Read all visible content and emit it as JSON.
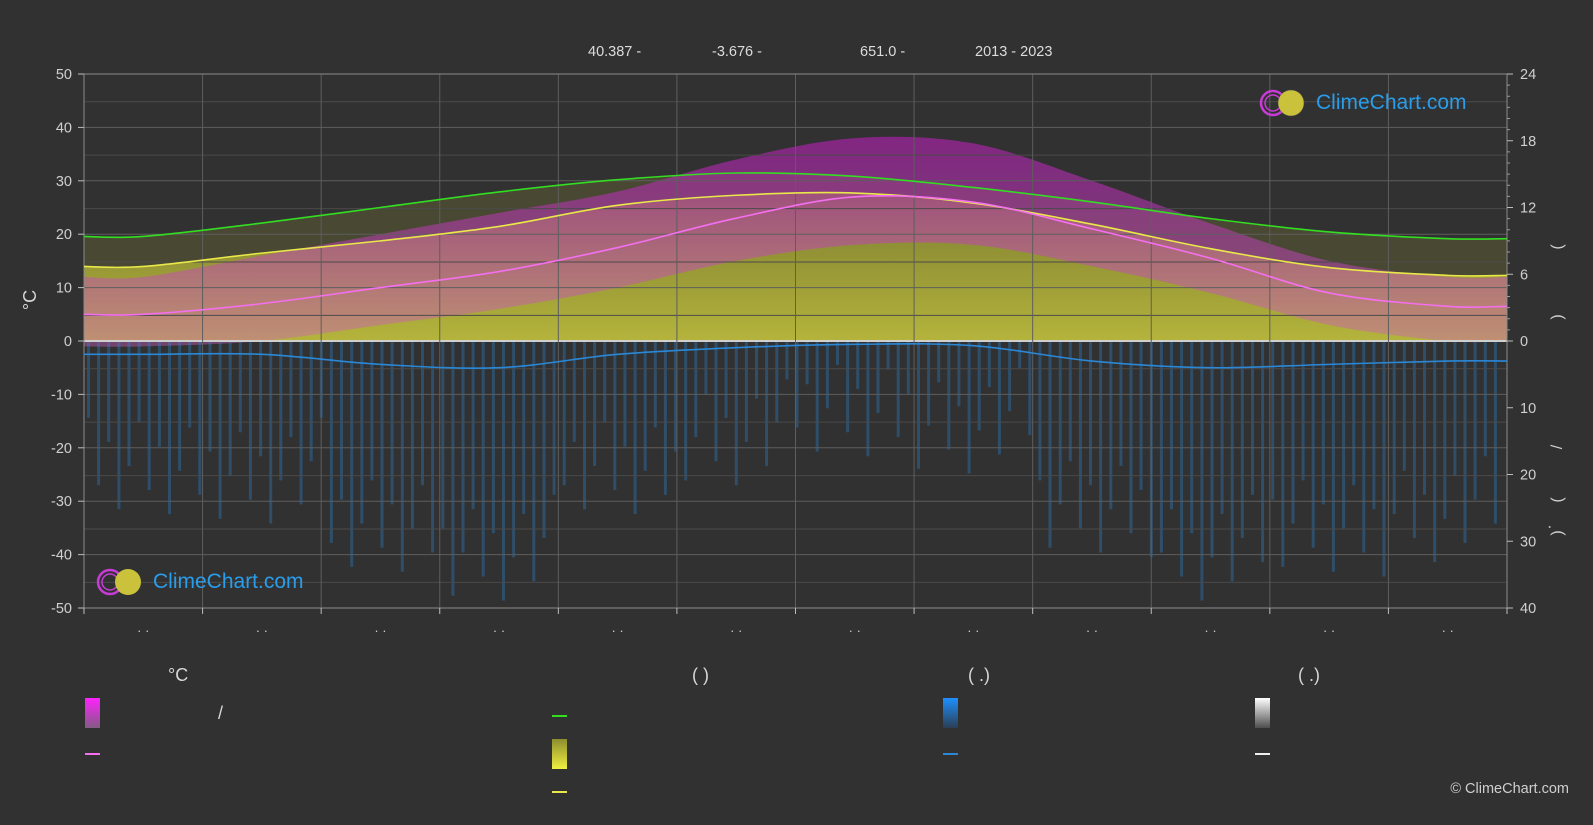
{
  "header": {
    "lat": "40.387 -",
    "lon": "-3.676 -",
    "elevation": "651.0 -",
    "period": "2013 - 2023"
  },
  "logo_text": "ClimeChart.com",
  "copyright": "© ClimeChart.com",
  "legend": {
    "temp_unit": "°C",
    "sun_head": "(        )",
    "rain_head": "(   .)",
    "snow_head": "(   .)",
    "slash": "/"
  },
  "colors": {
    "background": "#313131",
    "grid": "#5e5e5e",
    "daylight": "#33dd22",
    "sunshine": "#e8e84a",
    "avg_temp": "#f46ff0",
    "temp_range": "#c92ec6",
    "rain": "#2a88d6",
    "snow": "#dddddd",
    "brand": "#2a9dea"
  },
  "chart_data": {
    "type": "line",
    "x_tick_labels": [
      "· ·",
      "· ·",
      "· ·",
      "· ·",
      "· ·",
      "· ·",
      "· ·",
      "· ·",
      "· ·",
      "· ·",
      "· ·",
      "· ·"
    ],
    "y_left": {
      "label": "°C",
      "ticks": [
        50,
        40,
        30,
        20,
        10,
        0,
        -10,
        -20,
        -30,
        -40,
        -50
      ],
      "ylim": [
        -50,
        50
      ]
    },
    "y_right_top": {
      "ticks": [
        24,
        18,
        12,
        6,
        0
      ],
      "ylim": [
        0,
        24
      ]
    },
    "y_right_bottom": {
      "ticks": [
        0,
        10,
        20,
        30,
        40
      ],
      "ylim": [
        0,
        40
      ]
    },
    "right_axis_glyphs": [
      "(",
      ")",
      "/",
      "(",
      "·",
      ")"
    ],
    "grid": true,
    "months": 12,
    "series": [
      {
        "key": "daylight",
        "values": [
          9.4,
          10.6,
          12.0,
          13.4,
          14.5,
          15.1,
          14.8,
          13.8,
          12.5,
          11.0,
          9.8,
          9.2
        ]
      },
      {
        "key": "sunshine",
        "values": [
          6.7,
          7.9,
          9.0,
          10.3,
          12.2,
          13.1,
          13.3,
          12.4,
          10.5,
          8.3,
          6.6,
          5.9
        ]
      },
      {
        "key": "avg_temp",
        "values": [
          5.0,
          7.0,
          10.0,
          13.0,
          17.5,
          23.0,
          27.0,
          26.0,
          21.0,
          15.5,
          9.0,
          6.5
        ]
      },
      {
        "key": "rain",
        "values": [
          2.0,
          2.0,
          3.5,
          4.0,
          2.0,
          1.0,
          0.5,
          0.7,
          3.0,
          4.0,
          3.5,
          3.0
        ]
      }
    ],
    "temp_range_max": [
      12,
      16,
      20,
      24,
      28,
      34,
      38,
      37,
      30,
      22,
      15,
      12
    ],
    "temp_range_min": [
      -1,
      0,
      3,
      6,
      10,
      15,
      18,
      18,
      14,
      9,
      3,
      0
    ]
  }
}
